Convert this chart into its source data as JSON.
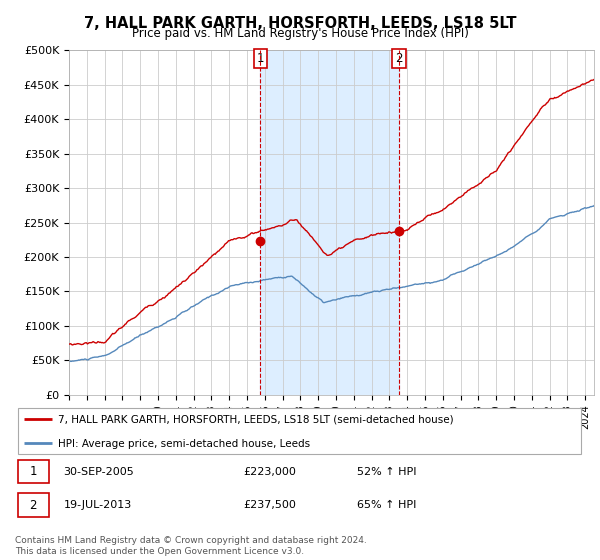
{
  "title": "7, HALL PARK GARTH, HORSFORTH, LEEDS, LS18 5LT",
  "subtitle": "Price paid vs. HM Land Registry's House Price Index (HPI)",
  "ylabel_ticks": [
    "£0",
    "£50K",
    "£100K",
    "£150K",
    "£200K",
    "£250K",
    "£300K",
    "£350K",
    "£400K",
    "£450K",
    "£500K"
  ],
  "ytick_values": [
    0,
    50000,
    100000,
    150000,
    200000,
    250000,
    300000,
    350000,
    400000,
    450000,
    500000
  ],
  "ylim": [
    0,
    500000
  ],
  "xlim_start": 1995.0,
  "xlim_end": 2024.5,
  "sale1_date": 2005.75,
  "sale1_price": 223000,
  "sale2_date": 2013.54,
  "sale2_price": 237500,
  "legend_line1": "7, HALL PARK GARTH, HORSFORTH, LEEDS, LS18 5LT (semi-detached house)",
  "legend_line2": "HPI: Average price, semi-detached house, Leeds",
  "footer": "Contains HM Land Registry data © Crown copyright and database right 2024.\nThis data is licensed under the Open Government Licence v3.0.",
  "sale_color": "#cc0000",
  "hpi_color": "#5588bb",
  "shade_color": "#ddeeff",
  "grid_color": "#cccccc",
  "bg_color": "#ffffff"
}
